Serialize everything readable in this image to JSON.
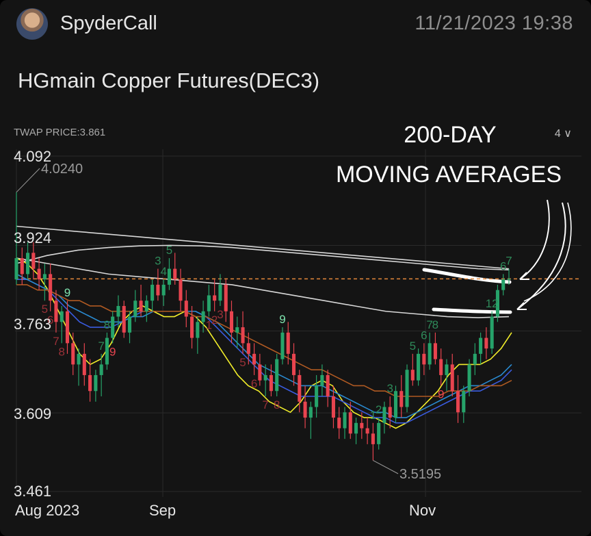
{
  "header": {
    "username": "SpyderCall",
    "timestamp": "11/21/2023  19:38"
  },
  "title": "HGmain  Copper Futures(DEC3)",
  "indicator": {
    "twap_label": "TWAP  PRICE:3.861",
    "interval": "4"
  },
  "annotation": {
    "line1": "200-DAY",
    "line2": "MOVING AVERAGES"
  },
  "colors": {
    "up": "#26a36a",
    "down": "#e8444f",
    "ma_fast": "#f2ee2a",
    "ma_mid1": "#3a5ce0",
    "ma_mid2": "#2a8ad0",
    "ma_slow": "#b05a22",
    "ma_long": "#d8d8d8",
    "current_price_line": "#e5883a"
  },
  "chart_data": {
    "type": "candlestick",
    "x_ticks": [
      "Aug 2023",
      "Sep",
      "Nov"
    ],
    "y_ticks": [
      "4.092",
      "3.924",
      "3.763",
      "3.609",
      "3.461"
    ],
    "ylim": [
      3.461,
      4.092
    ],
    "current_price": 3.861,
    "high_label": "4.0240",
    "low_label": "3.5195",
    "candles": [
      {
        "o": 3.86,
        "h": 4.024,
        "l": 3.85,
        "c": 3.9
      },
      {
        "o": 3.9,
        "h": 3.92,
        "l": 3.85,
        "c": 3.87
      },
      {
        "o": 3.87,
        "h": 3.93,
        "l": 3.86,
        "c": 3.91
      },
      {
        "o": 3.91,
        "h": 3.93,
        "l": 3.86,
        "c": 3.88
      },
      {
        "o": 3.88,
        "h": 3.9,
        "l": 3.84,
        "c": 3.86
      },
      {
        "o": 3.86,
        "h": 3.89,
        "l": 3.82,
        "c": 3.87
      },
      {
        "o": 3.87,
        "h": 3.89,
        "l": 3.8,
        "c": 3.82
      },
      {
        "o": 3.82,
        "h": 3.84,
        "l": 3.76,
        "c": 3.78
      },
      {
        "o": 3.78,
        "h": 3.81,
        "l": 3.74,
        "c": 3.8
      },
      {
        "o": 3.8,
        "h": 3.82,
        "l": 3.72,
        "c": 3.74
      },
      {
        "o": 3.74,
        "h": 3.76,
        "l": 3.68,
        "c": 3.7
      },
      {
        "o": 3.7,
        "h": 3.73,
        "l": 3.66,
        "c": 3.72
      },
      {
        "o": 3.72,
        "h": 3.74,
        "l": 3.66,
        "c": 3.68
      },
      {
        "o": 3.68,
        "h": 3.71,
        "l": 3.63,
        "c": 3.65
      },
      {
        "o": 3.65,
        "h": 3.69,
        "l": 3.63,
        "c": 3.68
      },
      {
        "o": 3.68,
        "h": 3.72,
        "l": 3.64,
        "c": 3.7
      },
      {
        "o": 3.7,
        "h": 3.76,
        "l": 3.69,
        "c": 3.75
      },
      {
        "o": 3.75,
        "h": 3.8,
        "l": 3.74,
        "c": 3.79
      },
      {
        "o": 3.79,
        "h": 3.83,
        "l": 3.77,
        "c": 3.81
      },
      {
        "o": 3.81,
        "h": 3.82,
        "l": 3.75,
        "c": 3.76
      },
      {
        "o": 3.76,
        "h": 3.8,
        "l": 3.74,
        "c": 3.79
      },
      {
        "o": 3.79,
        "h": 3.84,
        "l": 3.78,
        "c": 3.82
      },
      {
        "o": 3.82,
        "h": 3.85,
        "l": 3.79,
        "c": 3.8
      },
      {
        "o": 3.8,
        "h": 3.83,
        "l": 3.78,
        "c": 3.82
      },
      {
        "o": 3.82,
        "h": 3.86,
        "l": 3.8,
        "c": 3.85
      },
      {
        "o": 3.85,
        "h": 3.88,
        "l": 3.82,
        "c": 3.83
      },
      {
        "o": 3.83,
        "h": 3.86,
        "l": 3.81,
        "c": 3.85
      },
      {
        "o": 3.85,
        "h": 3.9,
        "l": 3.84,
        "c": 3.88
      },
      {
        "o": 3.88,
        "h": 3.91,
        "l": 3.85,
        "c": 3.86
      },
      {
        "o": 3.86,
        "h": 3.88,
        "l": 3.8,
        "c": 3.82
      },
      {
        "o": 3.82,
        "h": 3.84,
        "l": 3.77,
        "c": 3.79
      },
      {
        "o": 3.79,
        "h": 3.81,
        "l": 3.73,
        "c": 3.75
      },
      {
        "o": 3.75,
        "h": 3.79,
        "l": 3.72,
        "c": 3.78
      },
      {
        "o": 3.78,
        "h": 3.82,
        "l": 3.76,
        "c": 3.8
      },
      {
        "o": 3.8,
        "h": 3.85,
        "l": 3.79,
        "c": 3.83
      },
      {
        "o": 3.83,
        "h": 3.86,
        "l": 3.8,
        "c": 3.82
      },
      {
        "o": 3.82,
        "h": 3.87,
        "l": 3.81,
        "c": 3.85
      },
      {
        "o": 3.85,
        "h": 3.86,
        "l": 3.78,
        "c": 3.8
      },
      {
        "o": 3.8,
        "h": 3.82,
        "l": 3.74,
        "c": 3.76
      },
      {
        "o": 3.76,
        "h": 3.79,
        "l": 3.73,
        "c": 3.77
      },
      {
        "o": 3.77,
        "h": 3.8,
        "l": 3.72,
        "c": 3.74
      },
      {
        "o": 3.74,
        "h": 3.76,
        "l": 3.7,
        "c": 3.72
      },
      {
        "o": 3.72,
        "h": 3.74,
        "l": 3.68,
        "c": 3.7
      },
      {
        "o": 3.7,
        "h": 3.72,
        "l": 3.66,
        "c": 3.67
      },
      {
        "o": 3.67,
        "h": 3.7,
        "l": 3.64,
        "c": 3.68
      },
      {
        "o": 3.68,
        "h": 3.7,
        "l": 3.64,
        "c": 3.65
      },
      {
        "o": 3.65,
        "h": 3.72,
        "l": 3.64,
        "c": 3.71
      },
      {
        "o": 3.71,
        "h": 3.77,
        "l": 3.7,
        "c": 3.76
      },
      {
        "o": 3.76,
        "h": 3.78,
        "l": 3.7,
        "c": 3.72
      },
      {
        "o": 3.72,
        "h": 3.74,
        "l": 3.66,
        "c": 3.68
      },
      {
        "o": 3.68,
        "h": 3.69,
        "l": 3.61,
        "c": 3.63
      },
      {
        "o": 3.63,
        "h": 3.66,
        "l": 3.58,
        "c": 3.6
      },
      {
        "o": 3.6,
        "h": 3.63,
        "l": 3.56,
        "c": 3.62
      },
      {
        "o": 3.62,
        "h": 3.68,
        "l": 3.6,
        "c": 3.66
      },
      {
        "o": 3.66,
        "h": 3.7,
        "l": 3.64,
        "c": 3.68
      },
      {
        "o": 3.68,
        "h": 3.69,
        "l": 3.62,
        "c": 3.64
      },
      {
        "o": 3.64,
        "h": 3.66,
        "l": 3.58,
        "c": 3.6
      },
      {
        "o": 3.6,
        "h": 3.62,
        "l": 3.56,
        "c": 3.58
      },
      {
        "o": 3.58,
        "h": 3.62,
        "l": 3.56,
        "c": 3.61
      },
      {
        "o": 3.61,
        "h": 3.63,
        "l": 3.56,
        "c": 3.57
      },
      {
        "o": 3.57,
        "h": 3.6,
        "l": 3.55,
        "c": 3.59
      },
      {
        "o": 3.59,
        "h": 3.61,
        "l": 3.56,
        "c": 3.58
      },
      {
        "o": 3.58,
        "h": 3.6,
        "l": 3.55,
        "c": 3.57
      },
      {
        "o": 3.57,
        "h": 3.59,
        "l": 3.5195,
        "c": 3.55
      },
      {
        "o": 3.55,
        "h": 3.6,
        "l": 3.54,
        "c": 3.59
      },
      {
        "o": 3.59,
        "h": 3.63,
        "l": 3.57,
        "c": 3.62
      },
      {
        "o": 3.62,
        "h": 3.64,
        "l": 3.58,
        "c": 3.6
      },
      {
        "o": 3.6,
        "h": 3.66,
        "l": 3.59,
        "c": 3.65
      },
      {
        "o": 3.65,
        "h": 3.68,
        "l": 3.6,
        "c": 3.62
      },
      {
        "o": 3.62,
        "h": 3.7,
        "l": 3.61,
        "c": 3.69
      },
      {
        "o": 3.69,
        "h": 3.72,
        "l": 3.66,
        "c": 3.67
      },
      {
        "o": 3.67,
        "h": 3.73,
        "l": 3.66,
        "c": 3.72
      },
      {
        "o": 3.72,
        "h": 3.74,
        "l": 3.68,
        "c": 3.7
      },
      {
        "o": 3.7,
        "h": 3.76,
        "l": 3.69,
        "c": 3.74
      },
      {
        "o": 3.74,
        "h": 3.76,
        "l": 3.7,
        "c": 3.71
      },
      {
        "o": 3.71,
        "h": 3.73,
        "l": 3.66,
        "c": 3.68
      },
      {
        "o": 3.68,
        "h": 3.71,
        "l": 3.65,
        "c": 3.7
      },
      {
        "o": 3.7,
        "h": 3.72,
        "l": 3.64,
        "c": 3.65
      },
      {
        "o": 3.65,
        "h": 3.68,
        "l": 3.59,
        "c": 3.61
      },
      {
        "o": 3.61,
        "h": 3.66,
        "l": 3.59,
        "c": 3.65
      },
      {
        "o": 3.65,
        "h": 3.71,
        "l": 3.64,
        "c": 3.7
      },
      {
        "o": 3.7,
        "h": 3.74,
        "l": 3.68,
        "c": 3.72
      },
      {
        "o": 3.72,
        "h": 3.76,
        "l": 3.7,
        "c": 3.75
      },
      {
        "o": 3.75,
        "h": 3.77,
        "l": 3.71,
        "c": 3.73
      },
      {
        "o": 3.73,
        "h": 3.8,
        "l": 3.72,
        "c": 3.79
      },
      {
        "o": 3.79,
        "h": 3.85,
        "l": 3.78,
        "c": 3.84
      },
      {
        "o": 3.84,
        "h": 3.87,
        "l": 3.83,
        "c": 3.86
      },
      {
        "o": 3.86,
        "h": 3.88,
        "l": 3.85,
        "c": 3.861
      }
    ],
    "moving_averages": [
      {
        "color_key": "ma_fast",
        "values": [
          3.9,
          3.89,
          3.87,
          3.84,
          3.8,
          3.76,
          3.72,
          3.7,
          3.71,
          3.74,
          3.78,
          3.8,
          3.81,
          3.8,
          3.79,
          3.79,
          3.8,
          3.79,
          3.77,
          3.74,
          3.71,
          3.68,
          3.66,
          3.65,
          3.63,
          3.62,
          3.61,
          3.63,
          3.66,
          3.67,
          3.66,
          3.63,
          3.61,
          3.6,
          3.6,
          3.59,
          3.58,
          3.59,
          3.61,
          3.63,
          3.65,
          3.68,
          3.7,
          3.7,
          3.7,
          3.71,
          3.73,
          3.76
        ]
      },
      {
        "color_key": "ma_mid1",
        "values": [
          3.86,
          3.86,
          3.85,
          3.84,
          3.82,
          3.8,
          3.78,
          3.77,
          3.77,
          3.77,
          3.78,
          3.79,
          3.8,
          3.8,
          3.8,
          3.8,
          3.8,
          3.8,
          3.79,
          3.77,
          3.75,
          3.73,
          3.71,
          3.69,
          3.67,
          3.66,
          3.65,
          3.64,
          3.64,
          3.64,
          3.64,
          3.63,
          3.62,
          3.61,
          3.6,
          3.6,
          3.59,
          3.59,
          3.6,
          3.61,
          3.62,
          3.63,
          3.64,
          3.65,
          3.65,
          3.66,
          3.67,
          3.69
        ]
      },
      {
        "color_key": "ma_mid2",
        "values": [
          3.87,
          3.86,
          3.85,
          3.84,
          3.83,
          3.81,
          3.8,
          3.79,
          3.78,
          3.78,
          3.78,
          3.79,
          3.79,
          3.8,
          3.8,
          3.8,
          3.8,
          3.8,
          3.79,
          3.78,
          3.76,
          3.74,
          3.72,
          3.7,
          3.69,
          3.68,
          3.67,
          3.66,
          3.66,
          3.66,
          3.65,
          3.64,
          3.63,
          3.62,
          3.61,
          3.61,
          3.6,
          3.6,
          3.61,
          3.62,
          3.63,
          3.64,
          3.65,
          3.66,
          3.66,
          3.67,
          3.68,
          3.7
        ]
      },
      {
        "color_key": "ma_slow",
        "values": [
          3.85,
          3.85,
          3.84,
          3.84,
          3.83,
          3.82,
          3.82,
          3.81,
          3.81,
          3.8,
          3.8,
          3.8,
          3.8,
          3.8,
          3.8,
          3.8,
          3.8,
          3.79,
          3.79,
          3.78,
          3.77,
          3.76,
          3.75,
          3.74,
          3.73,
          3.72,
          3.71,
          3.7,
          3.69,
          3.69,
          3.68,
          3.67,
          3.66,
          3.66,
          3.65,
          3.65,
          3.64,
          3.64,
          3.64,
          3.64,
          3.64,
          3.65,
          3.65,
          3.65,
          3.66,
          3.66,
          3.66,
          3.67
        ]
      }
    ],
    "long_moving_averages": [
      {
        "color_key": "ma_long",
        "values": [
          3.96,
          3.955,
          3.95,
          3.945,
          3.94,
          3.935,
          3.93,
          3.925,
          3.92,
          3.915,
          3.91,
          3.905,
          3.9,
          3.895,
          3.89,
          3.885,
          3.88
        ]
      },
      {
        "color_key": "ma_long",
        "values": [
          3.89,
          3.905,
          3.915,
          3.92,
          3.923,
          3.924,
          3.923,
          3.92,
          3.915,
          3.91,
          3.905,
          3.9,
          3.895,
          3.89,
          3.885,
          3.88,
          3.878
        ]
      },
      {
        "color_key": "ma_long",
        "values": [
          3.9,
          3.89,
          3.88,
          3.87,
          3.865,
          3.86,
          3.855,
          3.85,
          3.84,
          3.83,
          3.82,
          3.81,
          3.8,
          3.795,
          3.79,
          3.788,
          3.79
        ]
      }
    ],
    "td_markers": [
      {
        "i": 15,
        "text": "7",
        "up": true
      },
      {
        "i": 16,
        "text": "8",
        "up": true
      },
      {
        "i": 17,
        "text": "9",
        "up": false
      },
      {
        "i": 25,
        "text": "3",
        "up": true
      },
      {
        "i": 26,
        "text": "4",
        "up": true
      },
      {
        "i": 27,
        "text": "5",
        "up": true
      },
      {
        "i": 34,
        "text": "1",
        "up": false
      },
      {
        "i": 35,
        "text": "2",
        "up": false
      },
      {
        "i": 36,
        "text": "3",
        "up": false
      },
      {
        "i": 40,
        "text": "5",
        "up": false
      },
      {
        "i": 42,
        "text": "6",
        "up": false
      },
      {
        "i": 44,
        "text": "7",
        "up": false
      },
      {
        "i": 46,
        "text": "8",
        "up": false
      },
      {
        "i": 47,
        "text": "9",
        "up": true
      },
      {
        "i": 63,
        "text": "1",
        "up": true
      },
      {
        "i": 64,
        "text": "2",
        "up": true
      },
      {
        "i": 66,
        "text": "3",
        "up": true
      },
      {
        "i": 70,
        "text": "5",
        "up": true
      },
      {
        "i": 72,
        "text": "6",
        "up": true
      },
      {
        "i": 73,
        "text": "7",
        "up": true
      },
      {
        "i": 74,
        "text": "8",
        "up": true
      },
      {
        "i": 75,
        "text": "9",
        "up": false
      },
      {
        "i": 84,
        "text": "12",
        "up": true
      },
      {
        "i": 86,
        "text": "6",
        "up": true
      },
      {
        "i": 87,
        "text": "7",
        "up": true
      },
      {
        "i": 5,
        "text": "5",
        "up": false
      },
      {
        "i": 6,
        "text": "6",
        "up": false
      },
      {
        "i": 7,
        "text": "7",
        "up": false
      },
      {
        "i": 8,
        "text": "8",
        "up": false
      },
      {
        "i": 9,
        "text": "9",
        "up": true
      }
    ]
  }
}
